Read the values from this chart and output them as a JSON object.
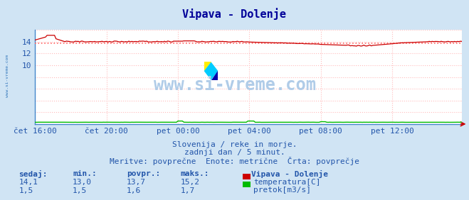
{
  "title": "Vipava - Dolenje",
  "bg_color": "#d0e4f4",
  "plot_bg_color": "#ffffff",
  "grid_color": "#ffbbbb",
  "watermark_text": "www.si-vreme.com",
  "watermark_color": "#b0cce8",
  "subtitle_lines": [
    "Slovenija / reke in morje.",
    "zadnji dan / 5 minut.",
    "Meritve: povprečne  Enote: metrične  Črta: povprečje"
  ],
  "xlabel_ticks": [
    "čet 16:00",
    "čet 20:00",
    "pet 00:00",
    "pet 04:00",
    "pet 08:00",
    "pet 12:00"
  ],
  "xlabel_tick_positions": [
    0,
    48,
    96,
    144,
    192,
    240
  ],
  "total_points": 288,
  "ylim": [
    0,
    16
  ],
  "yticks": [
    10,
    12,
    14
  ],
  "temp_avg": 13.7,
  "temp_color": "#cc0000",
  "temp_avg_line_color": "#ff6666",
  "flow_color": "#00bb00",
  "legend_title": "Vipava - Dolenje",
  "legend_items": [
    {
      "label": "temperatura[C]",
      "color": "#cc0000"
    },
    {
      "label": "pretok[m3/s]",
      "color": "#00bb00"
    }
  ],
  "table_headers": [
    "sedaj:",
    "min.:",
    "povpr.:",
    "maks.:"
  ],
  "table_data": [
    [
      "14,1",
      "13,0",
      "13,7",
      "15,2"
    ],
    [
      "1,5",
      "1,5",
      "1,6",
      "1,7"
    ]
  ],
  "table_color": "#2255aa",
  "axis_label_color": "#2255aa",
  "title_color": "#000099",
  "side_label": "www.si-vreme.com",
  "side_label_color": "#3377bb",
  "logo_colors": [
    "#ffee00",
    "#00ccff",
    "#0000aa"
  ]
}
